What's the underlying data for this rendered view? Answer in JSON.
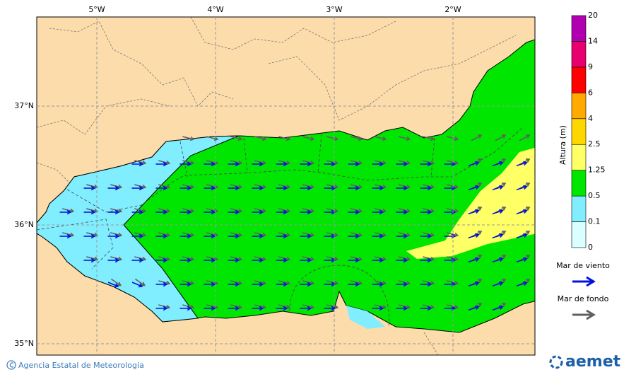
{
  "map": {
    "lon_labels": [
      "5°W",
      "4°W",
      "3°W",
      "2°W"
    ],
    "lat_labels": [
      "37°N",
      "36°N",
      "35°N"
    ]
  },
  "colorbar": {
    "title": "Altura (m)",
    "levels": [
      "0",
      "0.1",
      "0.5",
      "1.25",
      "2.5",
      "4",
      "6",
      "9",
      "14",
      "20"
    ],
    "colors": [
      "#d9ffff",
      "#80eeff",
      "#00e600",
      "#ffff66",
      "#ffd700",
      "#ffaa00",
      "#ff0000",
      "#e8006e",
      "#b000b0"
    ]
  },
  "legend": {
    "items": [
      {
        "label": "Mar de viento",
        "color": "#0010e0"
      },
      {
        "label": "Mar de fondo",
        "color": "#606060"
      }
    ]
  },
  "footer": {
    "credit": "Agencia Estatal de Meteorología",
    "logo": "aemet"
  }
}
